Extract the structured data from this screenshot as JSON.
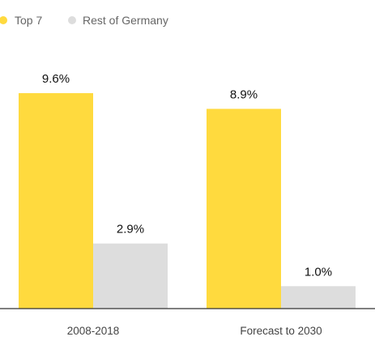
{
  "colors": {
    "top7": "#FFDA3E",
    "rest": "#DDDDDD",
    "axis": "#333333"
  },
  "chart_data": {
    "type": "bar",
    "title": "",
    "xlabel": "",
    "ylabel": "",
    "categories": [
      "2008-2018",
      "Forecast to 2030"
    ],
    "series": [
      {
        "name": "Top 7",
        "values": [
          9.6,
          8.9
        ],
        "labels": [
          "9.6%",
          "8.9%"
        ]
      },
      {
        "name": "Rest of Germany",
        "values": [
          2.9,
          1.0
        ],
        "labels": [
          "2.9%",
          "1.0%"
        ]
      }
    ],
    "ylim": [
      0,
      9.6
    ],
    "grid": false,
    "legend_position": "top-left"
  }
}
